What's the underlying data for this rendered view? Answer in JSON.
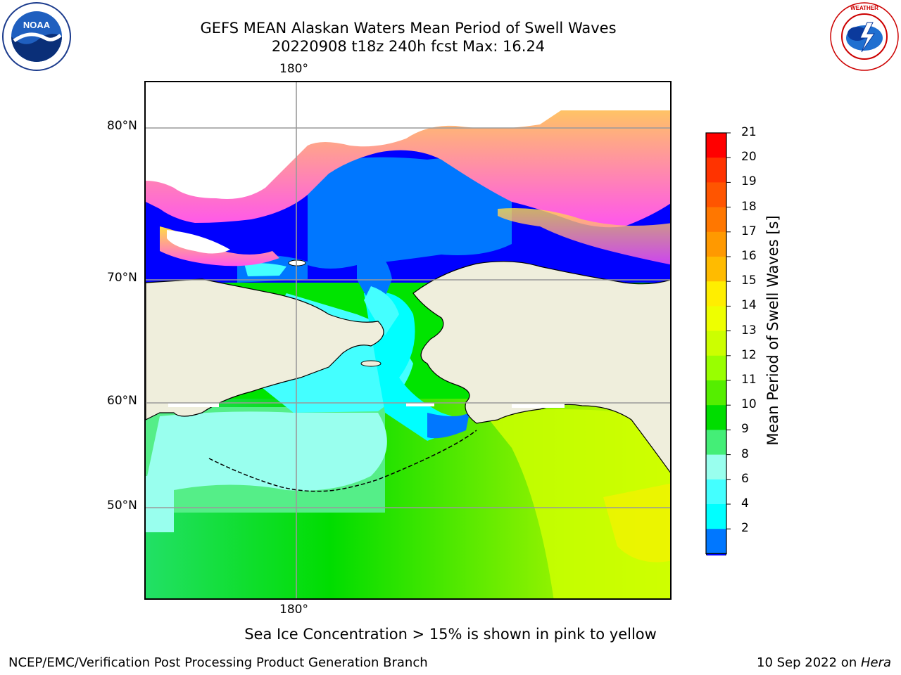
{
  "title": {
    "line1": "GEFS MEAN Alaskan Waters Mean Period of Swell Waves",
    "line2": "20220908 t18z 240h fcst   Max: 16.24"
  },
  "map": {
    "lon_labels": {
      "top": "180°",
      "bottom": "180°"
    },
    "lat_labels": [
      "80°N",
      "70°N",
      "60°N",
      "50°N"
    ],
    "colors": {
      "land": "#efeedc",
      "ocean_low": "#0000ff",
      "ice": "#ff66ff"
    }
  },
  "colorbar": {
    "title": "Mean Period of Swell Waves [s]",
    "labels": [
      "21",
      "20",
      "19",
      "18",
      "17",
      "16",
      "15",
      "14",
      "13",
      "12",
      "11",
      "10",
      "9",
      "8",
      "6",
      "4",
      "2"
    ],
    "colors": [
      "#ff0000",
      "#ff3300",
      "#ff5500",
      "#ff7700",
      "#ff9900",
      "#ffbb00",
      "#ffee00",
      "#eeff00",
      "#ccff00",
      "#99ff00",
      "#55ee00",
      "#00dd00",
      "#44ee77",
      "#99ffee",
      "#44ffff",
      "#00ffff",
      "#0077ff",
      "#0000ff"
    ]
  },
  "footnote": "Sea Ice Concentration > 15% is shown in pink to yellow",
  "footer": {
    "left": "NCEP/EMC/Verification Post Processing Product Generation Branch",
    "date": "10 Sep 2022 on ",
    "host": "Hera"
  }
}
